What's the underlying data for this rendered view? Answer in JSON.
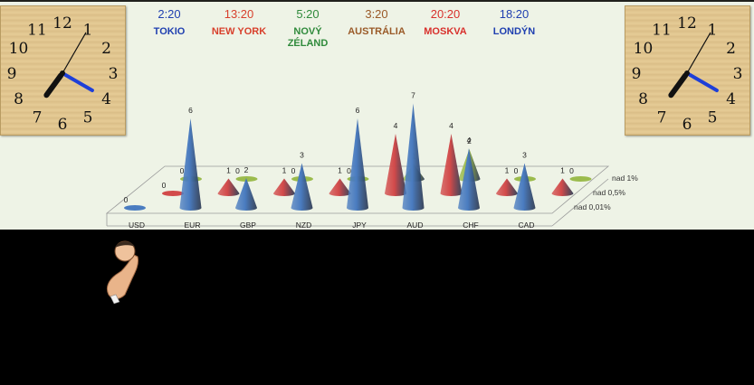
{
  "clocks": {
    "left": {
      "numbers": [
        "12",
        "1",
        "2",
        "3",
        "4",
        "5",
        "6",
        "7",
        "8",
        "9",
        "10",
        "11"
      ]
    },
    "right": {
      "numbers": [
        "12",
        "1",
        "2",
        "3",
        "4",
        "5",
        "6",
        "7",
        "8",
        "9",
        "10",
        "11"
      ]
    }
  },
  "cities": [
    {
      "time": "2:20",
      "name": "TOKIO",
      "color": "#1f3fb0"
    },
    {
      "time": "13:20",
      "name": "NEW YORK",
      "color": "#d8402c"
    },
    {
      "time": "5:20",
      "name": "NOVÝ ZÉLAND",
      "color": "#2f8a3b"
    },
    {
      "time": "3:20",
      "name": "AUSTRÁLIA",
      "color": "#9a5a28"
    },
    {
      "time": "20:20",
      "name": "MOSKVA",
      "color": "#d8302c"
    },
    {
      "time": "18:20",
      "name": "LONDÝN",
      "color": "#1f3fb0"
    }
  ],
  "chart_data": {
    "type": "bar",
    "categories": [
      "USD",
      "EUR",
      "GBP",
      "NZD",
      "JPY",
      "AUD",
      "CHF",
      "CAD"
    ],
    "series": [
      {
        "name": "nad 0,01%",
        "color": "#4a7cc0",
        "values": [
          0,
          6,
          2,
          3,
          6,
          7,
          4,
          3
        ]
      },
      {
        "name": "nad 0,5%",
        "color": "#d24a4a",
        "values": [
          0,
          1,
          1,
          1,
          4,
          4,
          1,
          1
        ]
      },
      {
        "name": "nad 1%",
        "color": "#9bbb4c",
        "values": [
          0,
          0,
          0,
          0,
          1,
          2,
          0,
          0
        ]
      }
    ]
  }
}
